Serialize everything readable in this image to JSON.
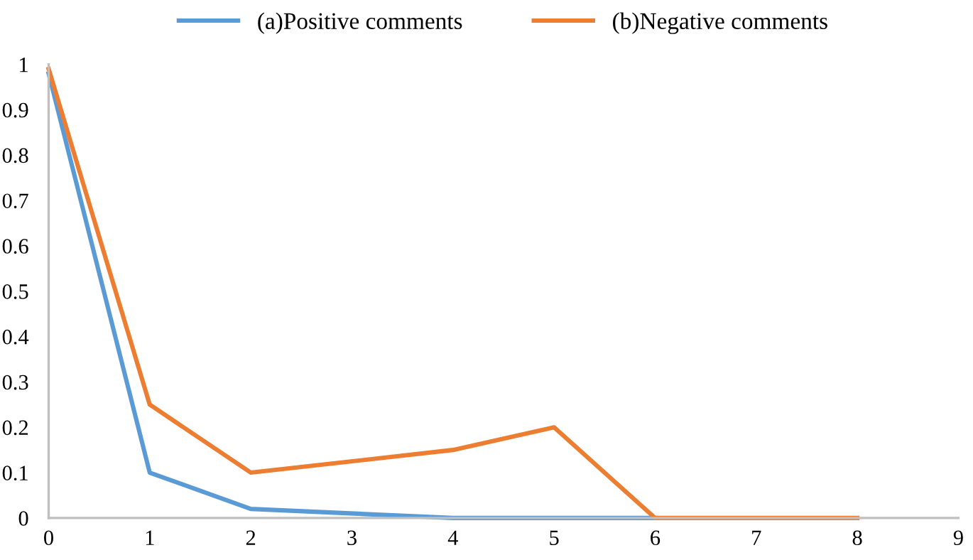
{
  "chart_data": {
    "type": "line",
    "series": [
      {
        "name": "(a)Positive comments",
        "color": "#5b9bd5",
        "x": [
          0,
          1,
          2,
          4,
          5,
          6
        ],
        "values": [
          0.98,
          0.1,
          0.02,
          0,
          0,
          0
        ]
      },
      {
        "name": "(b)Negative comments",
        "color": "#ed7d31",
        "x": [
          0,
          1,
          2,
          4,
          5,
          6,
          7,
          8
        ],
        "values": [
          0.99,
          0.25,
          0.1,
          0.15,
          0.2,
          0,
          0,
          0
        ]
      }
    ],
    "xlim": [
      0,
      9
    ],
    "xticks": [
      0,
      1,
      2,
      3,
      4,
      5,
      6,
      7,
      8,
      9
    ],
    "ylim": [
      0,
      1
    ],
    "yticks": [
      0,
      0.1,
      0.2,
      0.3,
      0.4,
      0.5,
      0.6,
      0.7,
      0.8,
      0.9,
      1
    ],
    "grid": false,
    "legend": "top",
    "marker": "none",
    "line_style": "solid"
  }
}
